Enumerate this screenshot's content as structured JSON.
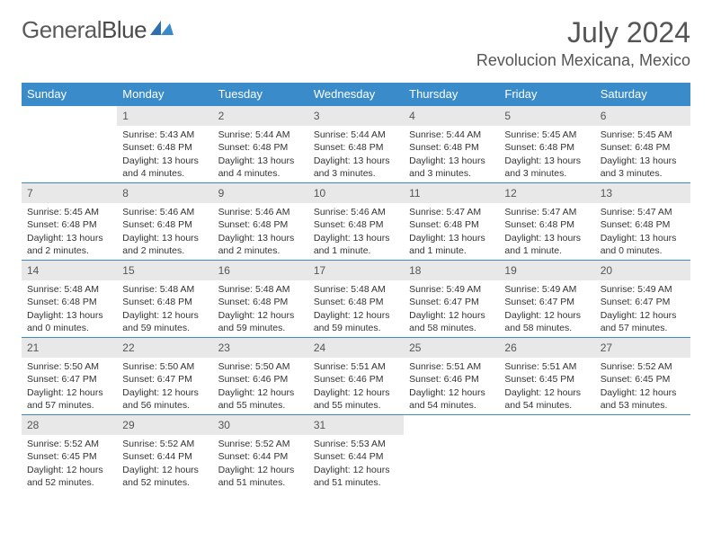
{
  "brand": {
    "first": "General",
    "second": "Blue"
  },
  "title": "July 2024",
  "location": "Revolucion Mexicana, Mexico",
  "colors": {
    "header_bg": "#3a8bc9",
    "header_text": "#ffffff",
    "daynum_bg": "#e8e8e8",
    "row_border": "#3a8bc9",
    "body_text": "#333333",
    "title_text": "#555555"
  },
  "columns": [
    "Sunday",
    "Monday",
    "Tuesday",
    "Wednesday",
    "Thursday",
    "Friday",
    "Saturday"
  ],
  "first_weekday_index": 1,
  "days": [
    {
      "n": 1,
      "sunrise": "5:43 AM",
      "sunset": "6:48 PM",
      "daylight": "13 hours and 4 minutes."
    },
    {
      "n": 2,
      "sunrise": "5:44 AM",
      "sunset": "6:48 PM",
      "daylight": "13 hours and 4 minutes."
    },
    {
      "n": 3,
      "sunrise": "5:44 AM",
      "sunset": "6:48 PM",
      "daylight": "13 hours and 3 minutes."
    },
    {
      "n": 4,
      "sunrise": "5:44 AM",
      "sunset": "6:48 PM",
      "daylight": "13 hours and 3 minutes."
    },
    {
      "n": 5,
      "sunrise": "5:45 AM",
      "sunset": "6:48 PM",
      "daylight": "13 hours and 3 minutes."
    },
    {
      "n": 6,
      "sunrise": "5:45 AM",
      "sunset": "6:48 PM",
      "daylight": "13 hours and 3 minutes."
    },
    {
      "n": 7,
      "sunrise": "5:45 AM",
      "sunset": "6:48 PM",
      "daylight": "13 hours and 2 minutes."
    },
    {
      "n": 8,
      "sunrise": "5:46 AM",
      "sunset": "6:48 PM",
      "daylight": "13 hours and 2 minutes."
    },
    {
      "n": 9,
      "sunrise": "5:46 AM",
      "sunset": "6:48 PM",
      "daylight": "13 hours and 2 minutes."
    },
    {
      "n": 10,
      "sunrise": "5:46 AM",
      "sunset": "6:48 PM",
      "daylight": "13 hours and 1 minute."
    },
    {
      "n": 11,
      "sunrise": "5:47 AM",
      "sunset": "6:48 PM",
      "daylight": "13 hours and 1 minute."
    },
    {
      "n": 12,
      "sunrise": "5:47 AM",
      "sunset": "6:48 PM",
      "daylight": "13 hours and 1 minute."
    },
    {
      "n": 13,
      "sunrise": "5:47 AM",
      "sunset": "6:48 PM",
      "daylight": "13 hours and 0 minutes."
    },
    {
      "n": 14,
      "sunrise": "5:48 AM",
      "sunset": "6:48 PM",
      "daylight": "13 hours and 0 minutes."
    },
    {
      "n": 15,
      "sunrise": "5:48 AM",
      "sunset": "6:48 PM",
      "daylight": "12 hours and 59 minutes."
    },
    {
      "n": 16,
      "sunrise": "5:48 AM",
      "sunset": "6:48 PM",
      "daylight": "12 hours and 59 minutes."
    },
    {
      "n": 17,
      "sunrise": "5:48 AM",
      "sunset": "6:48 PM",
      "daylight": "12 hours and 59 minutes."
    },
    {
      "n": 18,
      "sunrise": "5:49 AM",
      "sunset": "6:47 PM",
      "daylight": "12 hours and 58 minutes."
    },
    {
      "n": 19,
      "sunrise": "5:49 AM",
      "sunset": "6:47 PM",
      "daylight": "12 hours and 58 minutes."
    },
    {
      "n": 20,
      "sunrise": "5:49 AM",
      "sunset": "6:47 PM",
      "daylight": "12 hours and 57 minutes."
    },
    {
      "n": 21,
      "sunrise": "5:50 AM",
      "sunset": "6:47 PM",
      "daylight": "12 hours and 57 minutes."
    },
    {
      "n": 22,
      "sunrise": "5:50 AM",
      "sunset": "6:47 PM",
      "daylight": "12 hours and 56 minutes."
    },
    {
      "n": 23,
      "sunrise": "5:50 AM",
      "sunset": "6:46 PM",
      "daylight": "12 hours and 55 minutes."
    },
    {
      "n": 24,
      "sunrise": "5:51 AM",
      "sunset": "6:46 PM",
      "daylight": "12 hours and 55 minutes."
    },
    {
      "n": 25,
      "sunrise": "5:51 AM",
      "sunset": "6:46 PM",
      "daylight": "12 hours and 54 minutes."
    },
    {
      "n": 26,
      "sunrise": "5:51 AM",
      "sunset": "6:45 PM",
      "daylight": "12 hours and 54 minutes."
    },
    {
      "n": 27,
      "sunrise": "5:52 AM",
      "sunset": "6:45 PM",
      "daylight": "12 hours and 53 minutes."
    },
    {
      "n": 28,
      "sunrise": "5:52 AM",
      "sunset": "6:45 PM",
      "daylight": "12 hours and 52 minutes."
    },
    {
      "n": 29,
      "sunrise": "5:52 AM",
      "sunset": "6:44 PM",
      "daylight": "12 hours and 52 minutes."
    },
    {
      "n": 30,
      "sunrise": "5:52 AM",
      "sunset": "6:44 PM",
      "daylight": "12 hours and 51 minutes."
    },
    {
      "n": 31,
      "sunrise": "5:53 AM",
      "sunset": "6:44 PM",
      "daylight": "12 hours and 51 minutes."
    }
  ],
  "labels": {
    "sunrise": "Sunrise:",
    "sunset": "Sunset:",
    "daylight": "Daylight:"
  }
}
